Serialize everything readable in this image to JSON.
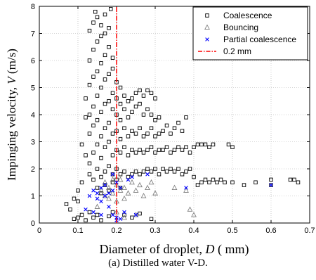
{
  "chart_data": {
    "type": "scatter",
    "title": "",
    "xlabel": "Diameter of droplet, D ( mm)",
    "ylabel": "Impinging velocity, V  (m/s)",
    "xlim": [
      0,
      0.7
    ],
    "ylim": [
      0,
      8
    ],
    "xticks": [
      "0",
      "0.1",
      "0.2",
      "0.3",
      "0.4",
      "0.5",
      "0.6",
      "0.7"
    ],
    "yticks": [
      "0",
      "1",
      "2",
      "3",
      "4",
      "5",
      "6",
      "7",
      "8"
    ],
    "grid": true,
    "legend_position": "top-right",
    "series": [
      {
        "name": "Coalescence",
        "marker": "square",
        "color": "#000000",
        "points": [
          [
            0.07,
            0.7
          ],
          [
            0.08,
            0.5
          ],
          [
            0.09,
            0.9
          ],
          [
            0.1,
            0.8
          ],
          [
            0.1,
            1.2
          ],
          [
            0.11,
            1.5
          ],
          [
            0.11,
            2.9
          ],
          [
            0.12,
            2.5
          ],
          [
            0.12,
            3.9
          ],
          [
            0.12,
            4.6
          ],
          [
            0.13,
            1.8
          ],
          [
            0.13,
            2.2
          ],
          [
            0.13,
            3.3
          ],
          [
            0.13,
            4.0
          ],
          [
            0.13,
            5.1
          ],
          [
            0.13,
            6.0
          ],
          [
            0.13,
            7.1
          ],
          [
            0.14,
            1.6
          ],
          [
            0.14,
            2.6
          ],
          [
            0.14,
            3.6
          ],
          [
            0.14,
            4.3
          ],
          [
            0.14,
            5.4
          ],
          [
            0.14,
            6.4
          ],
          [
            0.14,
            7.4
          ],
          [
            0.145,
            7.8
          ],
          [
            0.15,
            2.0
          ],
          [
            0.15,
            2.9
          ],
          [
            0.15,
            3.8
          ],
          [
            0.15,
            4.7
          ],
          [
            0.15,
            5.6
          ],
          [
            0.15,
            6.7
          ],
          [
            0.15,
            7.6
          ],
          [
            0.16,
            1.7
          ],
          [
            0.16,
            2.4
          ],
          [
            0.16,
            3.2
          ],
          [
            0.16,
            4.1
          ],
          [
            0.16,
            5.0
          ],
          [
            0.16,
            5.9
          ],
          [
            0.16,
            6.9
          ],
          [
            0.16,
            7.3
          ],
          [
            0.17,
            1.9
          ],
          [
            0.17,
            2.8
          ],
          [
            0.17,
            3.5
          ],
          [
            0.17,
            4.4
          ],
          [
            0.17,
            5.3
          ],
          [
            0.17,
            6.2
          ],
          [
            0.17,
            7.0
          ],
          [
            0.17,
            7.7
          ],
          [
            0.18,
            2.1
          ],
          [
            0.18,
            3.0
          ],
          [
            0.18,
            3.7
          ],
          [
            0.18,
            4.5
          ],
          [
            0.18,
            5.5
          ],
          [
            0.18,
            6.5
          ],
          [
            0.18,
            7.2
          ],
          [
            0.185,
            7.9
          ],
          [
            0.19,
            1.8
          ],
          [
            0.19,
            2.5
          ],
          [
            0.19,
            3.3
          ],
          [
            0.19,
            4.2
          ],
          [
            0.19,
            4.8
          ],
          [
            0.19,
            5.7
          ],
          [
            0.19,
            6.1
          ],
          [
            0.2,
            2.0
          ],
          [
            0.2,
            2.7
          ],
          [
            0.2,
            3.4
          ],
          [
            0.2,
            4.0
          ],
          [
            0.2,
            4.6
          ],
          [
            0.2,
            5.2
          ],
          [
            0.21,
            1.8
          ],
          [
            0.21,
            2.6
          ],
          [
            0.21,
            3.1
          ],
          [
            0.21,
            3.8
          ],
          [
            0.21,
            4.4
          ],
          [
            0.21,
            5.0
          ],
          [
            0.22,
            1.9
          ],
          [
            0.22,
            2.8
          ],
          [
            0.22,
            3.5
          ],
          [
            0.22,
            4.2
          ],
          [
            0.22,
            4.7
          ],
          [
            0.23,
            1.7
          ],
          [
            0.23,
            2.5
          ],
          [
            0.23,
            3.2
          ],
          [
            0.23,
            3.9
          ],
          [
            0.23,
            4.5
          ],
          [
            0.24,
            1.8
          ],
          [
            0.24,
            2.7
          ],
          [
            0.24,
            3.4
          ],
          [
            0.24,
            4.1
          ],
          [
            0.24,
            4.6
          ],
          [
            0.25,
            1.9
          ],
          [
            0.25,
            2.6
          ],
          [
            0.25,
            3.3
          ],
          [
            0.25,
            4.3
          ],
          [
            0.25,
            4.8
          ],
          [
            0.26,
            1.8
          ],
          [
            0.26,
            2.7
          ],
          [
            0.26,
            3.5
          ],
          [
            0.26,
            4.4
          ],
          [
            0.26,
            4.9
          ],
          [
            0.27,
            1.9
          ],
          [
            0.27,
            2.6
          ],
          [
            0.27,
            3.2
          ],
          [
            0.27,
            4.0
          ],
          [
            0.27,
            4.7
          ],
          [
            0.28,
            2.0
          ],
          [
            0.28,
            2.7
          ],
          [
            0.28,
            3.3
          ],
          [
            0.28,
            4.2
          ],
          [
            0.28,
            4.9
          ],
          [
            0.29,
            1.9
          ],
          [
            0.29,
            2.8
          ],
          [
            0.29,
            3.5
          ],
          [
            0.29,
            4.0
          ],
          [
            0.29,
            4.8
          ],
          [
            0.3,
            2.0
          ],
          [
            0.3,
            2.6
          ],
          [
            0.3,
            3.2
          ],
          [
            0.3,
            3.8
          ],
          [
            0.3,
            4.6
          ],
          [
            0.31,
            1.8
          ],
          [
            0.31,
            2.7
          ],
          [
            0.31,
            3.3
          ],
          [
            0.31,
            3.9
          ],
          [
            0.32,
            2.0
          ],
          [
            0.32,
            2.7
          ],
          [
            0.32,
            3.4
          ],
          [
            0.33,
            1.9
          ],
          [
            0.33,
            2.8
          ],
          [
            0.33,
            3.6
          ],
          [
            0.34,
            2.0
          ],
          [
            0.34,
            2.6
          ],
          [
            0.34,
            3.3
          ],
          [
            0.35,
            1.9
          ],
          [
            0.35,
            2.7
          ],
          [
            0.35,
            3.5
          ],
          [
            0.36,
            2.0
          ],
          [
            0.36,
            2.8
          ],
          [
            0.36,
            3.7
          ],
          [
            0.37,
            1.8
          ],
          [
            0.37,
            2.7
          ],
          [
            0.37,
            3.4
          ],
          [
            0.38,
            1.9
          ],
          [
            0.38,
            2.8
          ],
          [
            0.38,
            3.9
          ],
          [
            0.39,
            2.0
          ],
          [
            0.39,
            2.6
          ],
          [
            0.4,
            1.7
          ],
          [
            0.4,
            2.8
          ],
          [
            0.41,
            1.4
          ],
          [
            0.41,
            2.9
          ],
          [
            0.42,
            1.5
          ],
          [
            0.42,
            2.9
          ],
          [
            0.43,
            1.6
          ],
          [
            0.43,
            2.9
          ],
          [
            0.44,
            1.5
          ],
          [
            0.44,
            2.8
          ],
          [
            0.45,
            1.6
          ],
          [
            0.45,
            2.9
          ],
          [
            0.46,
            1.5
          ],
          [
            0.47,
            1.6
          ],
          [
            0.48,
            1.5
          ],
          [
            0.49,
            2.9
          ],
          [
            0.5,
            1.5
          ],
          [
            0.5,
            2.8
          ],
          [
            0.53,
            1.4
          ],
          [
            0.56,
            1.5
          ],
          [
            0.6,
            1.6
          ],
          [
            0.6,
            1.4
          ],
          [
            0.65,
            1.6
          ],
          [
            0.67,
            1.5
          ],
          [
            0.66,
            1.6
          ],
          [
            0.15,
            1.3
          ],
          [
            0.16,
            1.1
          ],
          [
            0.17,
            1.4
          ],
          [
            0.18,
            1.2
          ],
          [
            0.19,
            1.5
          ],
          [
            0.2,
            1.6
          ],
          [
            0.21,
            1.3
          ],
          [
            0.09,
            0.15
          ],
          [
            0.1,
            0.2
          ],
          [
            0.11,
            0.3
          ],
          [
            0.12,
            0.1
          ],
          [
            0.13,
            0.4
          ],
          [
            0.14,
            0.2
          ],
          [
            0.15,
            0.3
          ],
          [
            0.16,
            0.1
          ],
          [
            0.18,
            0.25
          ],
          [
            0.19,
            0.4
          ],
          [
            0.22,
            0.3
          ],
          [
            0.24,
            0.2
          ],
          [
            0.26,
            0.35
          ],
          [
            0.29,
            0.15
          ]
        ]
      },
      {
        "name": "Bouncing",
        "marker": "triangle",
        "color": "#808080",
        "points": [
          [
            0.16,
            1.2
          ],
          [
            0.17,
            1.0
          ],
          [
            0.17,
            1.5
          ],
          [
            0.18,
            1.3
          ],
          [
            0.18,
            0.9
          ],
          [
            0.19,
            1.6
          ],
          [
            0.19,
            1.1
          ],
          [
            0.2,
            1.4
          ],
          [
            0.2,
            0.8
          ],
          [
            0.21,
            1.2
          ],
          [
            0.21,
            1.6
          ],
          [
            0.22,
            1.3
          ],
          [
            0.22,
            0.9
          ],
          [
            0.23,
            1.1
          ],
          [
            0.24,
            1.5
          ],
          [
            0.25,
            1.2
          ],
          [
            0.26,
            1.4
          ],
          [
            0.27,
            1.0
          ],
          [
            0.28,
            1.3
          ],
          [
            0.29,
            1.5
          ],
          [
            0.3,
            1.1
          ],
          [
            0.35,
            1.3
          ],
          [
            0.38,
            1.2
          ],
          [
            0.39,
            0.5
          ],
          [
            0.4,
            0.3
          ],
          [
            0.25,
            0.3
          ],
          [
            0.22,
            0.2
          ],
          [
            0.2,
            0.4
          ],
          [
            0.15,
            0.6
          ]
        ]
      },
      {
        "name": "Partial coalescence",
        "marker": "x",
        "color": "#0000ff",
        "points": [
          [
            0.13,
            1.0
          ],
          [
            0.14,
            1.2
          ],
          [
            0.15,
            0.9
          ],
          [
            0.15,
            1.1
          ],
          [
            0.16,
            1.3
          ],
          [
            0.16,
            0.8
          ],
          [
            0.17,
            1.0
          ],
          [
            0.17,
            1.4
          ],
          [
            0.18,
            1.1
          ],
          [
            0.18,
            0.6
          ],
          [
            0.19,
            1.2
          ],
          [
            0.19,
            0.3
          ],
          [
            0.2,
            1.5
          ],
          [
            0.2,
            0.2
          ],
          [
            0.2,
            0.1
          ],
          [
            0.21,
            0.15
          ],
          [
            0.21,
            1.3
          ],
          [
            0.22,
            0.4
          ],
          [
            0.23,
            1.6
          ],
          [
            0.24,
            1.7
          ],
          [
            0.12,
            0.5
          ],
          [
            0.14,
            0.4
          ],
          [
            0.16,
            0.3
          ],
          [
            0.25,
            0.3
          ],
          [
            0.28,
            1.8
          ],
          [
            0.38,
            1.3
          ],
          [
            0.6,
            1.4
          ],
          [
            0.19,
            1.8
          ]
        ]
      },
      {
        "name": "0.2 mm",
        "marker": "line",
        "color": "#ff0000",
        "points": [
          [
            0.2,
            0
          ],
          [
            0.2,
            8
          ]
        ]
      }
    ]
  },
  "caption": "(a) Distilled water V-D."
}
